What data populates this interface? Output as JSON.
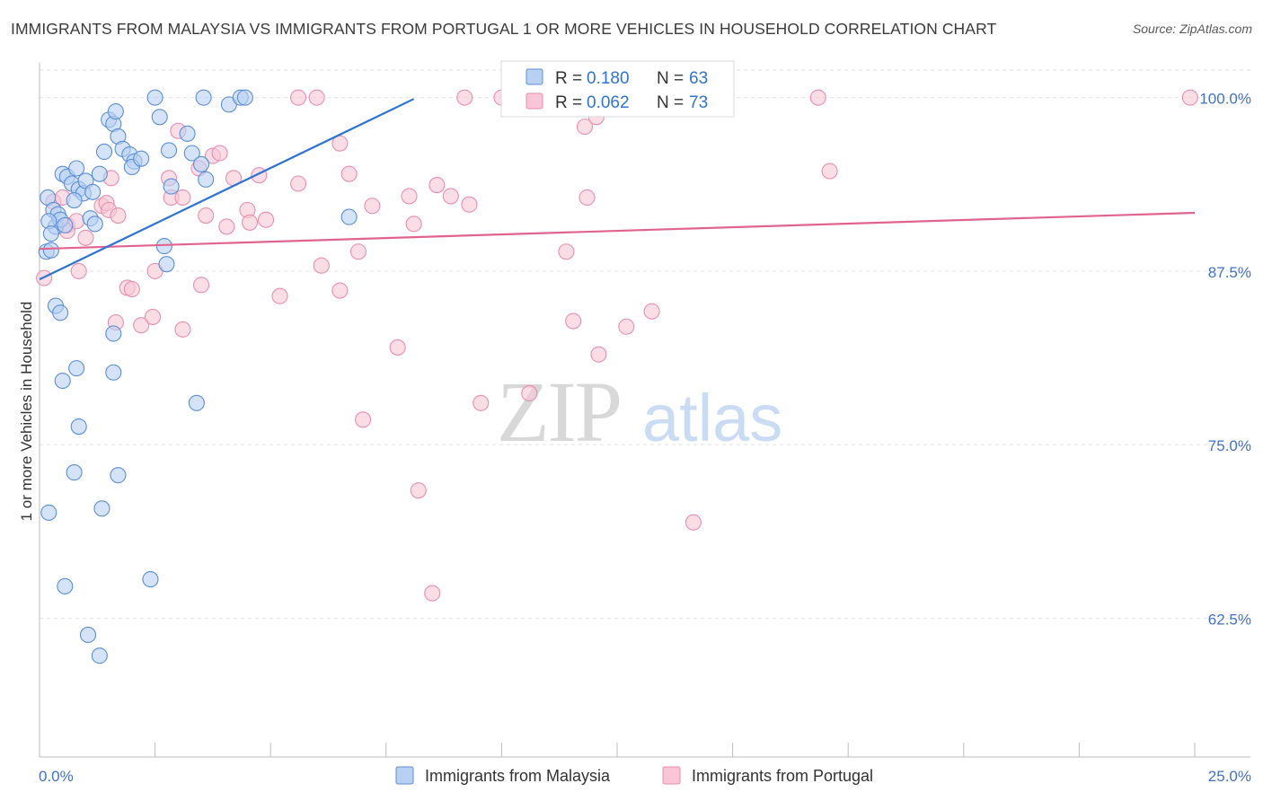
{
  "title": "IMMIGRANTS FROM MALAYSIA VS IMMIGRANTS FROM PORTUGAL 1 OR MORE VEHICLES IN HOUSEHOLD CORRELATION CHART",
  "source": "Source: ZipAtlas.com",
  "watermark": {
    "zip": "ZIP",
    "atlas": "atlas"
  },
  "colors": {
    "malaysia_fill": "#b8d1f3",
    "malaysia_stroke": "#5b8fd6",
    "malaysia_line": "#2f74d0",
    "portugal_fill": "#f8c6d6",
    "portugal_stroke": "#e98fb0",
    "portugal_line": "#e0648f",
    "tick_label": "#4472c4"
  },
  "legend": {
    "r_label": "R =",
    "n_label": "N =",
    "items": [
      {
        "r": "0.180",
        "n": "63"
      },
      {
        "r": "0.062",
        "n": "73"
      }
    ]
  },
  "chart_data": {
    "type": "scatter",
    "title": "IMMIGRANTS FROM MALAYSIA VS IMMIGRANTS FROM PORTUGAL 1 OR MORE VEHICLES IN HOUSEHOLD CORRELATION CHART",
    "xlabel": "",
    "ylabel": "1 or more Vehicles in Household",
    "xlim": [
      0,
      25
    ],
    "ylim": [
      52.5,
      102.5
    ],
    "x_tick_labels": [
      "0.0%",
      "25.0%"
    ],
    "y_ticks": [
      {
        "value": 100,
        "label": "100.0%"
      },
      {
        "value": 87.5,
        "label": "87.5%"
      },
      {
        "value": 75,
        "label": "75.0%"
      },
      {
        "value": 62.5,
        "label": "62.5%"
      }
    ],
    "grid": true,
    "series": [
      {
        "name": "Immigrants from Malaysia",
        "r": 0.18,
        "n": 63,
        "trend": {
          "x": [
            0.0,
            8.1
          ],
          "y": [
            86.9,
            99.9
          ]
        },
        "points": [
          {
            "x": 0.18,
            "y": 92.8
          },
          {
            "x": 0.3,
            "y": 91.9
          },
          {
            "x": 0.35,
            "y": 90.7
          },
          {
            "x": 0.4,
            "y": 91.6
          },
          {
            "x": 0.45,
            "y": 91.2
          },
          {
            "x": 0.55,
            "y": 90.8
          },
          {
            "x": 0.2,
            "y": 91.1
          },
          {
            "x": 0.25,
            "y": 90.2
          },
          {
            "x": 0.15,
            "y": 88.9
          },
          {
            "x": 0.5,
            "y": 94.5
          },
          {
            "x": 0.6,
            "y": 94.3
          },
          {
            "x": 0.7,
            "y": 93.8
          },
          {
            "x": 0.85,
            "y": 93.4
          },
          {
            "x": 0.95,
            "y": 93.1
          },
          {
            "x": 1.0,
            "y": 94.0
          },
          {
            "x": 1.15,
            "y": 93.2
          },
          {
            "x": 0.75,
            "y": 92.6
          },
          {
            "x": 1.1,
            "y": 91.3
          },
          {
            "x": 0.8,
            "y": 94.9
          },
          {
            "x": 1.3,
            "y": 94.5
          },
          {
            "x": 1.5,
            "y": 98.4
          },
          {
            "x": 1.6,
            "y": 98.1
          },
          {
            "x": 1.4,
            "y": 96.1
          },
          {
            "x": 1.7,
            "y": 97.2
          },
          {
            "x": 1.8,
            "y": 96.3
          },
          {
            "x": 1.65,
            "y": 99.0
          },
          {
            "x": 1.95,
            "y": 95.9
          },
          {
            "x": 2.05,
            "y": 95.4
          },
          {
            "x": 2.0,
            "y": 95.0
          },
          {
            "x": 2.2,
            "y": 95.6
          },
          {
            "x": 2.5,
            "y": 100.0
          },
          {
            "x": 2.6,
            "y": 98.6
          },
          {
            "x": 2.8,
            "y": 96.2
          },
          {
            "x": 2.85,
            "y": 93.6
          },
          {
            "x": 3.2,
            "y": 97.4
          },
          {
            "x": 3.3,
            "y": 96.0
          },
          {
            "x": 3.5,
            "y": 95.2
          },
          {
            "x": 3.6,
            "y": 94.1
          },
          {
            "x": 3.55,
            "y": 100.0
          },
          {
            "x": 4.1,
            "y": 99.5
          },
          {
            "x": 4.35,
            "y": 100.0
          },
          {
            "x": 4.45,
            "y": 100.0
          },
          {
            "x": 1.2,
            "y": 90.9
          },
          {
            "x": 2.7,
            "y": 89.3
          },
          {
            "x": 2.75,
            "y": 88.0
          },
          {
            "x": 0.25,
            "y": 89.0
          },
          {
            "x": 0.35,
            "y": 85.0
          },
          {
            "x": 0.45,
            "y": 84.5
          },
          {
            "x": 1.6,
            "y": 83.0
          },
          {
            "x": 1.6,
            "y": 80.2
          },
          {
            "x": 0.5,
            "y": 79.6
          },
          {
            "x": 0.8,
            "y": 80.5
          },
          {
            "x": 0.85,
            "y": 76.3
          },
          {
            "x": 0.75,
            "y": 73.0
          },
          {
            "x": 1.7,
            "y": 72.8
          },
          {
            "x": 1.35,
            "y": 70.4
          },
          {
            "x": 0.2,
            "y": 70.1
          },
          {
            "x": 0.55,
            "y": 64.8
          },
          {
            "x": 2.4,
            "y": 65.3
          },
          {
            "x": 1.05,
            "y": 61.3
          },
          {
            "x": 1.3,
            "y": 59.8
          },
          {
            "x": 3.4,
            "y": 78.0
          },
          {
            "x": 6.7,
            "y": 91.4
          }
        ]
      },
      {
        "name": "Immigrants from Portugal",
        "r": 0.062,
        "n": 73,
        "trend": {
          "x": [
            0.0,
            25.0
          ],
          "y": [
            89.1,
            91.7
          ]
        },
        "points": [
          {
            "x": 0.1,
            "y": 87.0
          },
          {
            "x": 0.3,
            "y": 92.5
          },
          {
            "x": 0.5,
            "y": 92.8
          },
          {
            "x": 0.6,
            "y": 90.8
          },
          {
            "x": 0.6,
            "y": 90.4
          },
          {
            "x": 0.8,
            "y": 91.1
          },
          {
            "x": 0.85,
            "y": 87.5
          },
          {
            "x": 1.0,
            "y": 89.9
          },
          {
            "x": 1.35,
            "y": 92.2
          },
          {
            "x": 1.45,
            "y": 92.4
          },
          {
            "x": 1.5,
            "y": 91.9
          },
          {
            "x": 1.55,
            "y": 94.2
          },
          {
            "x": 1.7,
            "y": 91.5
          },
          {
            "x": 1.9,
            "y": 86.3
          },
          {
            "x": 2.0,
            "y": 86.2
          },
          {
            "x": 1.65,
            "y": 83.8
          },
          {
            "x": 2.2,
            "y": 83.6
          },
          {
            "x": 2.45,
            "y": 84.2
          },
          {
            "x": 2.5,
            "y": 87.5
          },
          {
            "x": 2.8,
            "y": 94.2
          },
          {
            "x": 2.85,
            "y": 92.8
          },
          {
            "x": 3.0,
            "y": 97.6
          },
          {
            "x": 3.1,
            "y": 92.8
          },
          {
            "x": 3.1,
            "y": 83.3
          },
          {
            "x": 3.45,
            "y": 94.9
          },
          {
            "x": 3.5,
            "y": 86.5
          },
          {
            "x": 3.6,
            "y": 91.5
          },
          {
            "x": 3.75,
            "y": 95.8
          },
          {
            "x": 3.9,
            "y": 96.0
          },
          {
            "x": 4.05,
            "y": 90.7
          },
          {
            "x": 4.2,
            "y": 94.2
          },
          {
            "x": 4.5,
            "y": 91.9
          },
          {
            "x": 4.55,
            "y": 91.0
          },
          {
            "x": 4.75,
            "y": 94.4
          },
          {
            "x": 4.9,
            "y": 91.2
          },
          {
            "x": 5.2,
            "y": 85.7
          },
          {
            "x": 5.6,
            "y": 100.0
          },
          {
            "x": 5.6,
            "y": 93.8
          },
          {
            "x": 6.0,
            "y": 100.0
          },
          {
            "x": 6.1,
            "y": 87.9
          },
          {
            "x": 6.5,
            "y": 96.7
          },
          {
            "x": 6.5,
            "y": 86.1
          },
          {
            "x": 6.7,
            "y": 94.5
          },
          {
            "x": 6.9,
            "y": 88.9
          },
          {
            "x": 7.0,
            "y": 76.8
          },
          {
            "x": 7.2,
            "y": 92.2
          },
          {
            "x": 7.75,
            "y": 82.0
          },
          {
            "x": 8.0,
            "y": 92.9
          },
          {
            "x": 8.1,
            "y": 90.9
          },
          {
            "x": 8.2,
            "y": 71.7
          },
          {
            "x": 8.5,
            "y": 64.3
          },
          {
            "x": 8.6,
            "y": 93.7
          },
          {
            "x": 8.9,
            "y": 92.9
          },
          {
            "x": 9.2,
            "y": 100.0
          },
          {
            "x": 9.3,
            "y": 92.3
          },
          {
            "x": 9.55,
            "y": 78.0
          },
          {
            "x": 10.0,
            "y": 100.0
          },
          {
            "x": 10.6,
            "y": 78.7
          },
          {
            "x": 11.0,
            "y": 100.0
          },
          {
            "x": 11.4,
            "y": 88.9
          },
          {
            "x": 11.55,
            "y": 83.9
          },
          {
            "x": 11.8,
            "y": 97.9
          },
          {
            "x": 11.85,
            "y": 92.8
          },
          {
            "x": 12.05,
            "y": 98.6
          },
          {
            "x": 12.1,
            "y": 81.5
          },
          {
            "x": 12.3,
            "y": 100.0
          },
          {
            "x": 12.7,
            "y": 83.5
          },
          {
            "x": 13.25,
            "y": 84.6
          },
          {
            "x": 14.0,
            "y": 100.0
          },
          {
            "x": 14.15,
            "y": 69.4
          },
          {
            "x": 16.85,
            "y": 100.0
          },
          {
            "x": 17.1,
            "y": 94.7
          },
          {
            "x": 24.9,
            "y": 100.0
          }
        ]
      }
    ]
  }
}
